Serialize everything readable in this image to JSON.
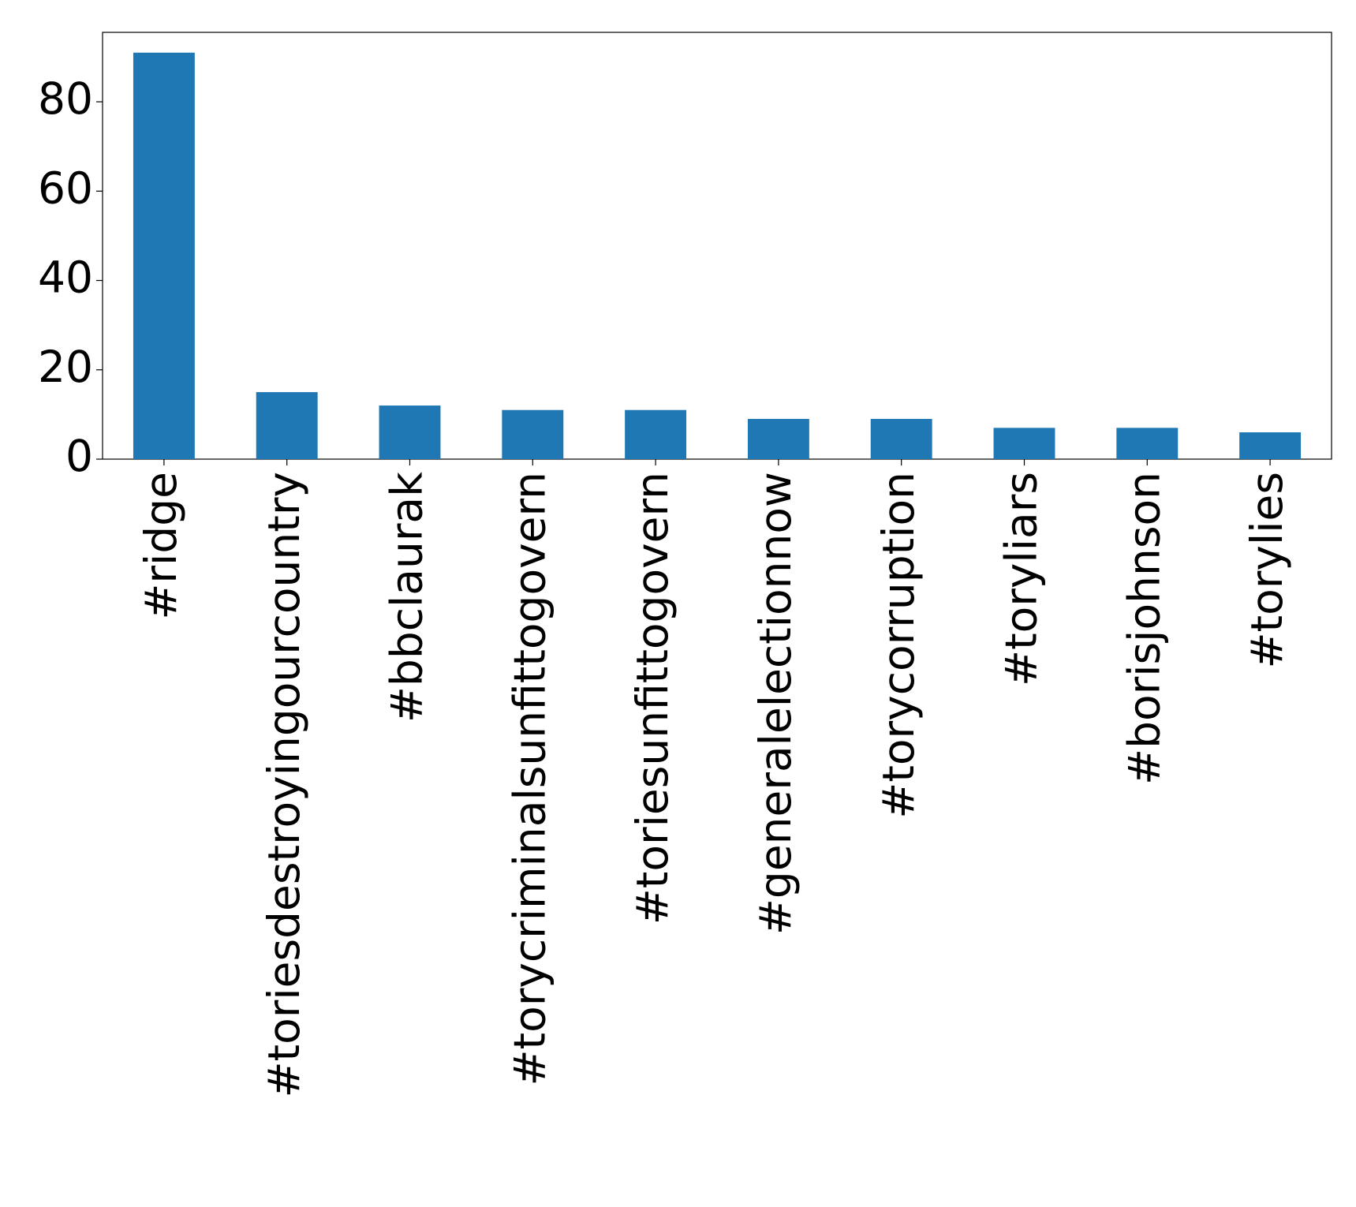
{
  "chart_data": {
    "type": "bar",
    "categories": [
      "#ridge",
      "#toriesdestroyingourcountry",
      "#bbclaurak",
      "#torycriminalsunfittogovern",
      "#toriesunfittogovern",
      "#generalelectionnow",
      "#torycorruption",
      "#toryliars",
      "#borisjohnson",
      "#torylies"
    ],
    "values": [
      91,
      15,
      12,
      11,
      11,
      9,
      9,
      7,
      7,
      6
    ],
    "color": "#1f77b4",
    "ylim": [
      0,
      95.55
    ],
    "yticks": [
      0,
      20,
      40,
      60,
      80
    ],
    "grid": false
  }
}
